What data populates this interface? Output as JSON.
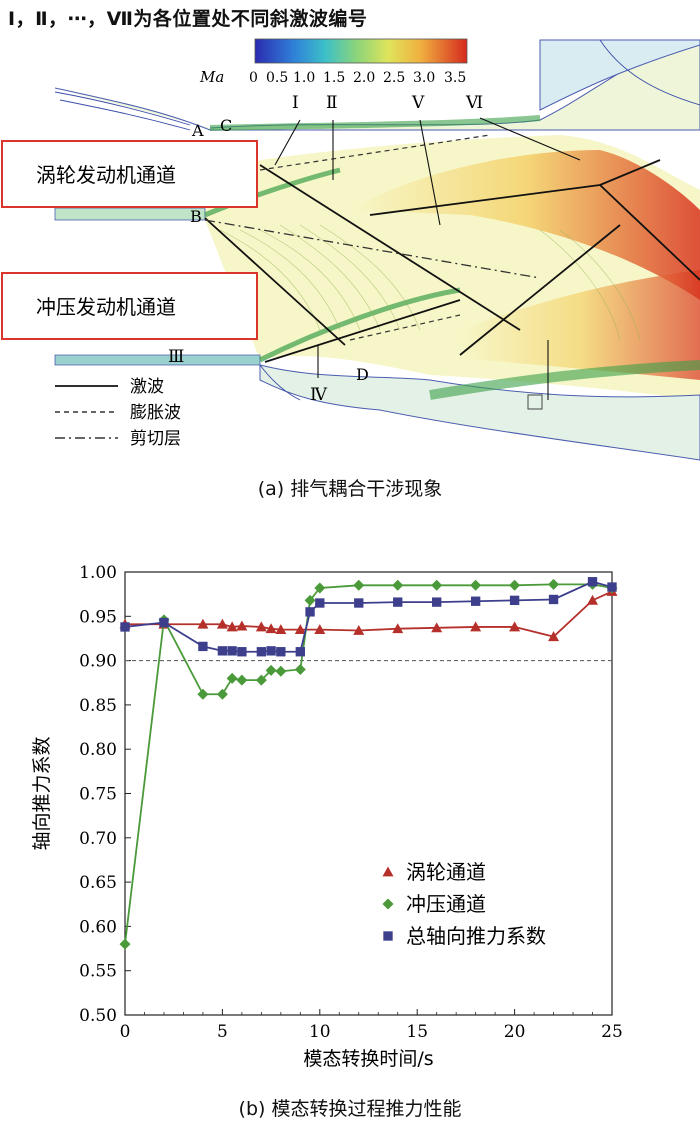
{
  "top_note": "Ⅰ，Ⅱ，⋯，Ⅶ为各位置处不同斜激波编号",
  "panel_a": {
    "colorbar_label": "Ma",
    "colorbar_ticks": [
      "0",
      "0.5",
      "1.0",
      "1.5",
      "2.0",
      "2.5",
      "3.0",
      "3.5"
    ],
    "channel_labels": [
      "涡轮发动机通道",
      "冲压发动机通道"
    ],
    "point_labels": [
      "A",
      "C",
      "B",
      "D"
    ],
    "shock_numerals": [
      "Ⅰ",
      "Ⅱ",
      "Ⅴ",
      "Ⅵ",
      "Ⅲ",
      "Ⅳ"
    ],
    "legend": [
      "激波",
      "膨胀波",
      "剪切层"
    ],
    "caption": "(a) 排气耦合干涉现象",
    "colors": {
      "low": "#3a3a9a",
      "mid": "#d8e05a",
      "high": "#d62a1e",
      "channel_box": "#d9352a"
    }
  },
  "panel_b": {
    "caption": "(b) 模态转换过程推力性能"
  },
  "chart_data": {
    "type": "line",
    "xlabel": "模态转换时间/s",
    "ylabel": "轴向推力系数",
    "xlim": [
      0,
      25
    ],
    "ylim": [
      0.5,
      1.0
    ],
    "xticks": [
      "0",
      "5",
      "10",
      "15",
      "20",
      "25"
    ],
    "yticks": [
      "0.50",
      "0.55",
      "0.60",
      "0.65",
      "0.70",
      "0.75",
      "0.80",
      "0.85",
      "0.90",
      "0.95",
      "1.00"
    ],
    "reference_line": 0.9,
    "legend_position": "lower-right",
    "series": [
      {
        "name": "涡轮通道",
        "marker": "triangle",
        "color": "#b5302a",
        "x": [
          0,
          2,
          4,
          5,
          5.5,
          6,
          7,
          7.5,
          8,
          9,
          10,
          12,
          14,
          16,
          18,
          20,
          22,
          24,
          25
        ],
        "y": [
          0.941,
          0.941,
          0.941,
          0.941,
          0.938,
          0.939,
          0.938,
          0.936,
          0.935,
          0.935,
          0.935,
          0.934,
          0.936,
          0.937,
          0.938,
          0.938,
          0.927,
          0.968,
          0.978
        ]
      },
      {
        "name": "冲压通道",
        "marker": "diamond",
        "color": "#4a9a3a",
        "x": [
          0,
          2,
          4,
          5,
          5.5,
          6,
          7,
          7.5,
          8,
          9,
          9.5,
          10,
          12,
          14,
          16,
          18,
          20,
          22,
          24,
          25
        ],
        "y": [
          0.58,
          0.946,
          0.862,
          0.862,
          0.88,
          0.878,
          0.878,
          0.889,
          0.888,
          0.89,
          0.968,
          0.982,
          0.985,
          0.985,
          0.985,
          0.985,
          0.985,
          0.986,
          0.986,
          0.982
        ]
      },
      {
        "name": "总轴向推力系数",
        "marker": "square",
        "color": "#3d3f8c",
        "x": [
          0,
          2,
          4,
          5,
          5.5,
          6,
          7,
          7.5,
          8,
          9,
          9.5,
          10,
          12,
          14,
          16,
          18,
          20,
          22,
          24,
          25
        ],
        "y": [
          0.938,
          0.943,
          0.916,
          0.911,
          0.911,
          0.91,
          0.91,
          0.911,
          0.91,
          0.91,
          0.955,
          0.965,
          0.965,
          0.966,
          0.966,
          0.967,
          0.968,
          0.969,
          0.989,
          0.983
        ]
      }
    ]
  }
}
